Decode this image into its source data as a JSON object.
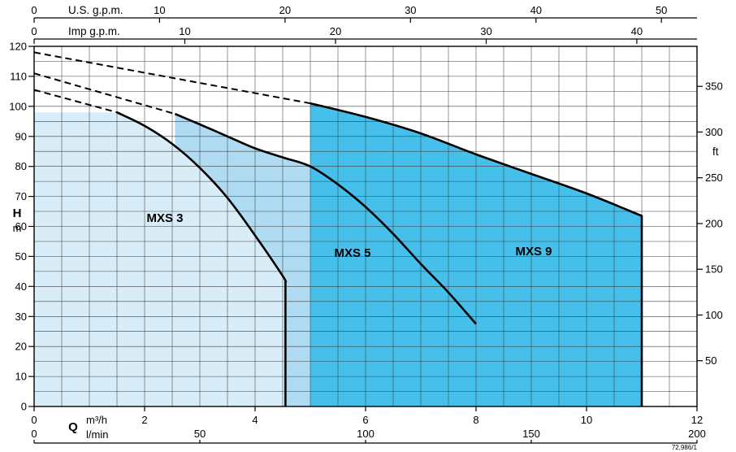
{
  "chart_data": {
    "type": "line",
    "description": "Pump performance envelope curves, head H (m) versus flow Q (m³/h), for pump families MXS 3, MXS 5 and MXS 9",
    "ref_code": "72,986/1",
    "units": {
      "flow": "m³/h",
      "head": "m"
    },
    "colors": {
      "background": "#ffffff",
      "grid": "#3f3f3f",
      "curve": "#000000"
    },
    "grid": {
      "q_step": 0.5,
      "h_step": 5
    },
    "axes": {
      "us_gpm": {
        "label": "U.S. g.p.m.",
        "ticks": [
          0,
          10,
          20,
          30,
          40,
          50
        ],
        "m3h_per_unit": 0.22712
      },
      "imp_gpm": {
        "label": "Imp g.p.m.",
        "ticks": [
          0,
          10,
          20,
          30,
          40
        ],
        "m3h_per_unit": 0.27277
      },
      "h_m": {
        "bold_label": "H",
        "unit": "m",
        "min": 0,
        "max": 120,
        "ticks": [
          0,
          10,
          20,
          30,
          40,
          50,
          60,
          70,
          80,
          90,
          100,
          110,
          120
        ]
      },
      "h_ft": {
        "unit": "ft",
        "ticks": [
          50,
          100,
          150,
          200,
          250,
          300,
          350
        ],
        "ft_per_m": 3.2808
      },
      "q_m3h": {
        "bold_label": "Q",
        "unit": "m³/h",
        "min": 0,
        "max": 12,
        "ticks": [
          0,
          2,
          4,
          6,
          8,
          10,
          12
        ]
      },
      "q_lmin": {
        "unit": "l/min",
        "ticks": [
          0,
          50,
          100,
          150,
          200
        ],
        "m3h_per_unit": 0.06
      }
    },
    "series": [
      {
        "name": "MXS 3",
        "color": "#d9edf8",
        "dashed": [
          [
            0,
            105.5
          ],
          [
            1.5,
            98
          ]
        ],
        "solid": [
          [
            1.5,
            98
          ],
          [
            2,
            93.5
          ],
          [
            2.5,
            87.5
          ],
          [
            3,
            79.5
          ],
          [
            3.5,
            69.5
          ],
          [
            4,
            57
          ],
          [
            4.5,
            43.5
          ],
          [
            4.55,
            41.5
          ]
        ],
        "fill_pre": [
          [
            0,
            98
          ]
        ],
        "cutoff": true
      },
      {
        "name": "MXS 5",
        "color": "#afdcf3",
        "dashed": [
          [
            0,
            111
          ],
          [
            2.55,
            97.5
          ]
        ],
        "solid": [
          [
            2.55,
            97.5
          ],
          [
            3,
            94
          ],
          [
            3.5,
            90
          ],
          [
            4,
            86
          ],
          [
            4.5,
            83
          ],
          [
            5,
            80
          ],
          [
            5.5,
            74
          ],
          [
            6,
            66.5
          ],
          [
            6.5,
            57.5
          ],
          [
            7,
            47.5
          ],
          [
            7.5,
            38
          ],
          [
            8,
            27.5
          ]
        ],
        "cutoff": false
      },
      {
        "name": "MXS 9",
        "color": "#46c0ea",
        "dashed": [
          [
            0,
            118
          ],
          [
            5,
            101
          ]
        ],
        "solid": [
          [
            5,
            101
          ],
          [
            6,
            96.5
          ],
          [
            7,
            91
          ],
          [
            8,
            84
          ],
          [
            9,
            77.5
          ],
          [
            10,
            71
          ],
          [
            11,
            63.5
          ]
        ],
        "cutoff": true
      }
    ]
  }
}
